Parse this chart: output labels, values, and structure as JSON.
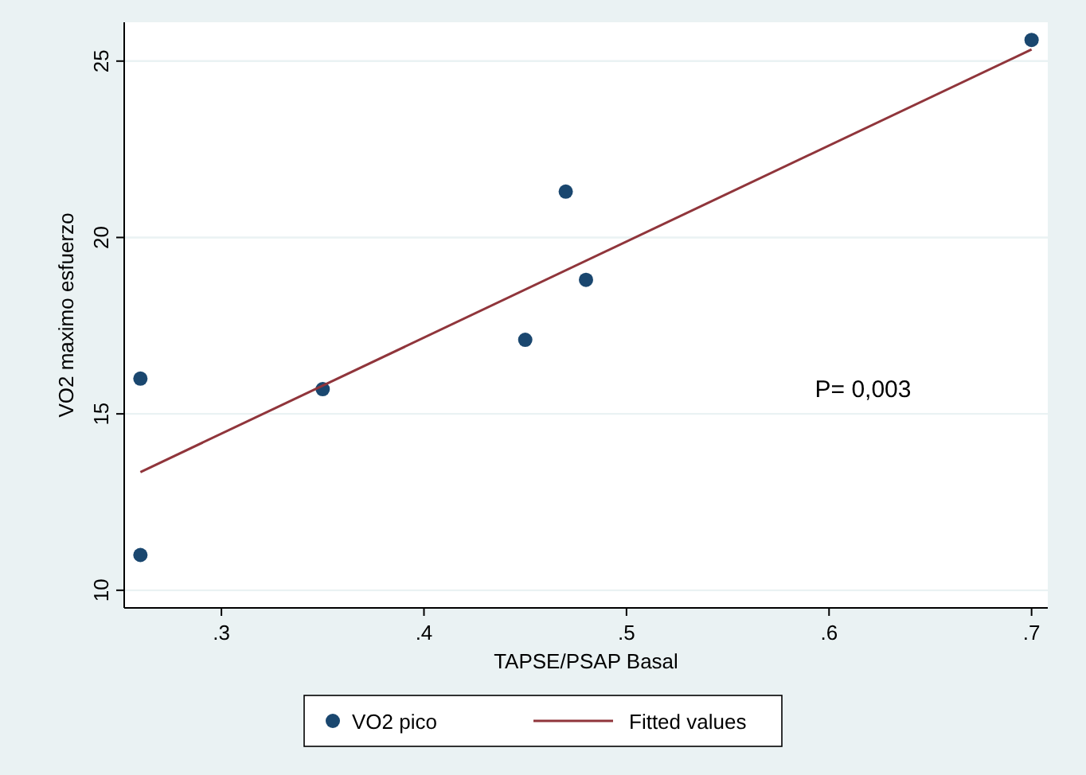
{
  "chart_data": {
    "type": "scatter",
    "xlabel": "TAPSE/PSAP Basal",
    "ylabel": "VO2 maximo esfuerzo",
    "xlim": [
      0.252,
      0.708
    ],
    "ylim": [
      9.5,
      26.1
    ],
    "xticks": [
      {
        "value": 0.3,
        "label": ".3"
      },
      {
        "value": 0.4,
        "label": ".4"
      },
      {
        "value": 0.5,
        "label": ".5"
      },
      {
        "value": 0.6,
        "label": ".6"
      },
      {
        "value": 0.7,
        "label": ".7"
      }
    ],
    "yticks": [
      10,
      15,
      20,
      25
    ],
    "grid": "y",
    "legend": "bottom",
    "series": [
      {
        "name": "VO2 pico",
        "marker": "circle",
        "color": "#1a476f",
        "x": [
          0.26,
          0.26,
          0.35,
          0.45,
          0.47,
          0.48,
          0.7
        ],
        "values": [
          16.0,
          11.0,
          15.7,
          17.1,
          21.3,
          18.8,
          25.6
        ]
      },
      {
        "name": "Fitted values",
        "type": "line",
        "color": "#90353b",
        "x": [
          0.26,
          0.7
        ],
        "values": [
          13.35,
          25.33
        ]
      }
    ],
    "annotations": [
      "P= 0,003"
    ]
  }
}
